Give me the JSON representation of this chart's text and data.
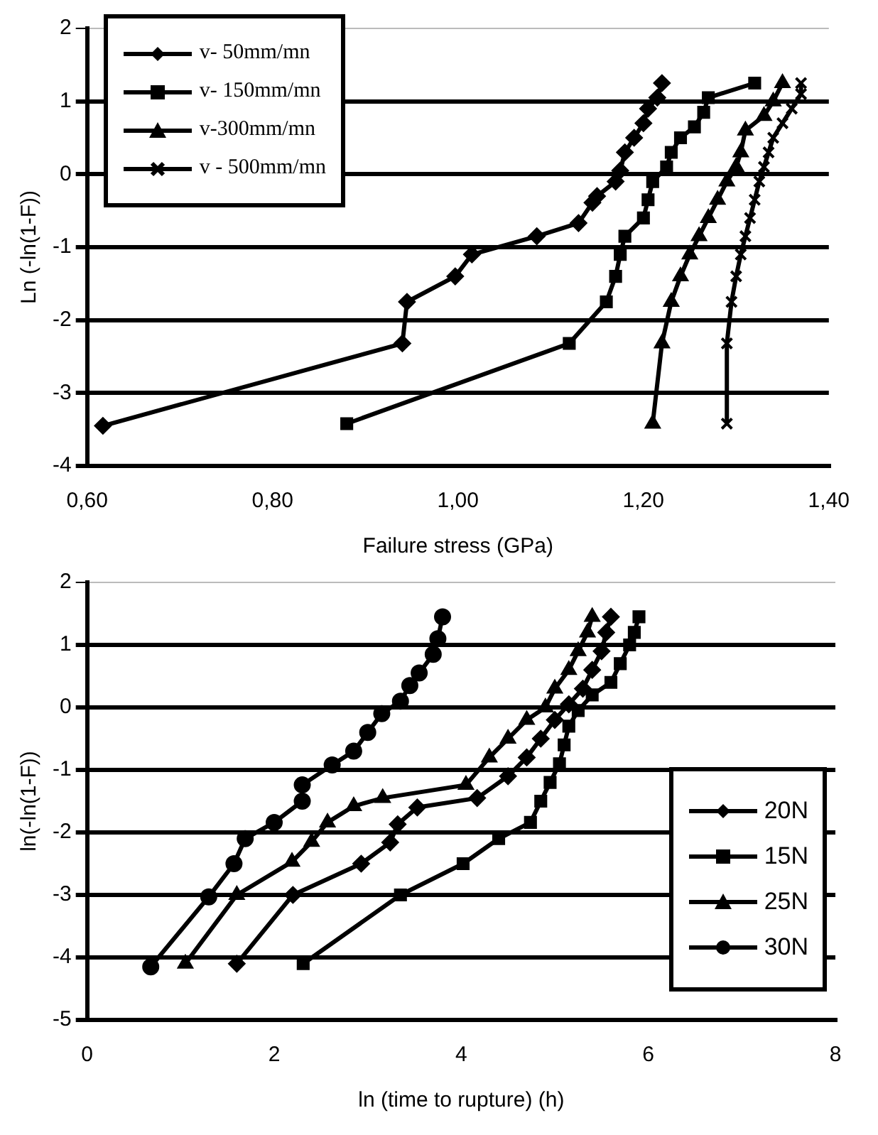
{
  "chart_data": [
    {
      "type": "line",
      "xlabel": "Failure stress (GPa)",
      "ylabel": "Ln (-ln(1-F))",
      "xlim": [
        0.6,
        1.4
      ],
      "ylim": [
        -4,
        2
      ],
      "xticks": [
        {
          "value": 0.6,
          "label": "0,60"
        },
        {
          "value": 0.8,
          "label": "0,80"
        },
        {
          "value": 1.0,
          "label": "1,00"
        },
        {
          "value": 1.2,
          "label": "1,20"
        },
        {
          "value": 1.4,
          "label": "1,40"
        }
      ],
      "yticks": [
        -4,
        -3,
        -2,
        -1,
        0,
        1,
        2
      ],
      "grid": "y",
      "legend": "top left",
      "series": [
        {
          "name": "v- 50mm/mn",
          "color": "#000000",
          "marker": "diamond",
          "x": [
            0.617,
            0.94,
            0.945,
            0.997,
            1.015,
            1.085,
            1.13,
            1.145,
            1.15,
            1.17,
            1.175,
            1.18,
            1.19,
            1.2,
            1.205,
            1.215,
            1.22
          ],
          "values": [
            -3.45,
            -2.32,
            -1.75,
            -1.4,
            -1.1,
            -0.85,
            -0.67,
            -0.39,
            -0.3,
            -0.1,
            0.05,
            0.3,
            0.5,
            0.7,
            0.9,
            1.05,
            1.25
          ]
        },
        {
          "name": "v- 150mm/mn",
          "color": "#000000",
          "marker": "square",
          "x": [
            0.88,
            1.12,
            1.16,
            1.17,
            1.175,
            1.18,
            1.2,
            1.205,
            1.21,
            1.225,
            1.23,
            1.24,
            1.255,
            1.265,
            1.27,
            1.32
          ],
          "values": [
            -3.42,
            -2.32,
            -1.75,
            -1.4,
            -1.1,
            -0.85,
            -0.6,
            -0.35,
            -0.1,
            0.1,
            0.3,
            0.5,
            0.65,
            0.85,
            1.05,
            1.25
          ]
        },
        {
          "name": "v-300mm/mn",
          "color": "#000000",
          "marker": "triangle",
          "x": [
            1.21,
            1.22,
            1.23,
            1.24,
            1.25,
            1.26,
            1.27,
            1.28,
            1.29,
            1.3,
            1.305,
            1.31,
            1.33,
            1.34,
            1.35
          ],
          "values": [
            -3.42,
            -2.32,
            -1.75,
            -1.4,
            -1.1,
            -0.85,
            -0.6,
            -0.35,
            -0.1,
            0.1,
            0.3,
            0.6,
            0.8,
            1.0,
            1.25
          ]
        },
        {
          "name": "v - 500mm/mn",
          "color": "#000000",
          "marker": "cross",
          "x": [
            1.29,
            1.29,
            1.295,
            1.3,
            1.305,
            1.31,
            1.315,
            1.32,
            1.325,
            1.33,
            1.335,
            1.34,
            1.35,
            1.36,
            1.37,
            1.37
          ],
          "values": [
            -3.42,
            -2.32,
            -1.75,
            -1.4,
            -1.1,
            -0.85,
            -0.6,
            -0.35,
            -0.1,
            0.1,
            0.3,
            0.5,
            0.7,
            0.9,
            1.1,
            1.25
          ]
        }
      ]
    },
    {
      "type": "line",
      "xlabel": "ln (time to rupture) (h)",
      "ylabel": "ln(-ln(1-F))",
      "xlim": [
        0,
        8
      ],
      "ylim": [
        -5,
        2
      ],
      "xticks": [
        0,
        2,
        4,
        6,
        8
      ],
      "yticks": [
        -5,
        -4,
        -3,
        -2,
        -1,
        0,
        1,
        2
      ],
      "grid": "y",
      "legend": "bottom right",
      "series": [
        {
          "name": "20N",
          "color": "#000000",
          "marker": "diamond",
          "x": [
            1.6,
            2.2,
            2.93,
            3.24,
            3.32,
            3.53,
            4.17,
            4.5,
            4.7,
            4.85,
            5.0,
            5.15,
            5.3,
            5.4,
            5.5,
            5.55,
            5.6
          ],
          "values": [
            -4.1,
            -3.0,
            -2.5,
            -2.16,
            -1.87,
            -1.6,
            -1.45,
            -1.1,
            -0.8,
            -0.5,
            -0.2,
            0.05,
            0.3,
            0.6,
            0.9,
            1.2,
            1.45
          ]
        },
        {
          "name": "15N",
          "color": "#000000",
          "marker": "square",
          "x": [
            2.31,
            3.35,
            4.02,
            4.4,
            4.74,
            4.85,
            4.95,
            5.05,
            5.1,
            5.15,
            5.25,
            5.4,
            5.6,
            5.7,
            5.8,
            5.85,
            5.9
          ],
          "values": [
            -4.1,
            -3.0,
            -2.5,
            -2.1,
            -1.84,
            -1.5,
            -1.2,
            -0.9,
            -0.6,
            -0.3,
            -0.05,
            0.2,
            0.4,
            0.7,
            1.0,
            1.2,
            1.45
          ]
        },
        {
          "name": "25N",
          "color": "#000000",
          "marker": "triangle",
          "x": [
            1.05,
            1.6,
            2.19,
            2.4,
            2.57,
            2.85,
            3.16,
            4.05,
            4.3,
            4.5,
            4.7,
            4.9,
            5.0,
            5.15,
            5.25,
            5.35,
            5.4
          ],
          "values": [
            -4.1,
            -3.0,
            -2.47,
            -2.15,
            -1.84,
            -1.58,
            -1.45,
            -1.24,
            -0.8,
            -0.5,
            -0.2,
            0.0,
            0.3,
            0.6,
            0.9,
            1.2,
            1.45
          ]
        },
        {
          "name": "30N",
          "color": "#000000",
          "marker": "circle",
          "x": [
            0.68,
            1.3,
            1.57,
            1.69,
            2.0,
            2.3,
            2.3,
            2.62,
            2.85,
            3.0,
            3.15,
            3.35,
            3.45,
            3.55,
            3.7,
            3.75,
            3.8
          ],
          "values": [
            -4.15,
            -3.03,
            -2.5,
            -2.1,
            -1.84,
            -1.5,
            -1.24,
            -0.92,
            -0.7,
            -0.4,
            -0.1,
            0.1,
            0.35,
            0.55,
            0.85,
            1.1,
            1.45
          ]
        }
      ]
    }
  ]
}
